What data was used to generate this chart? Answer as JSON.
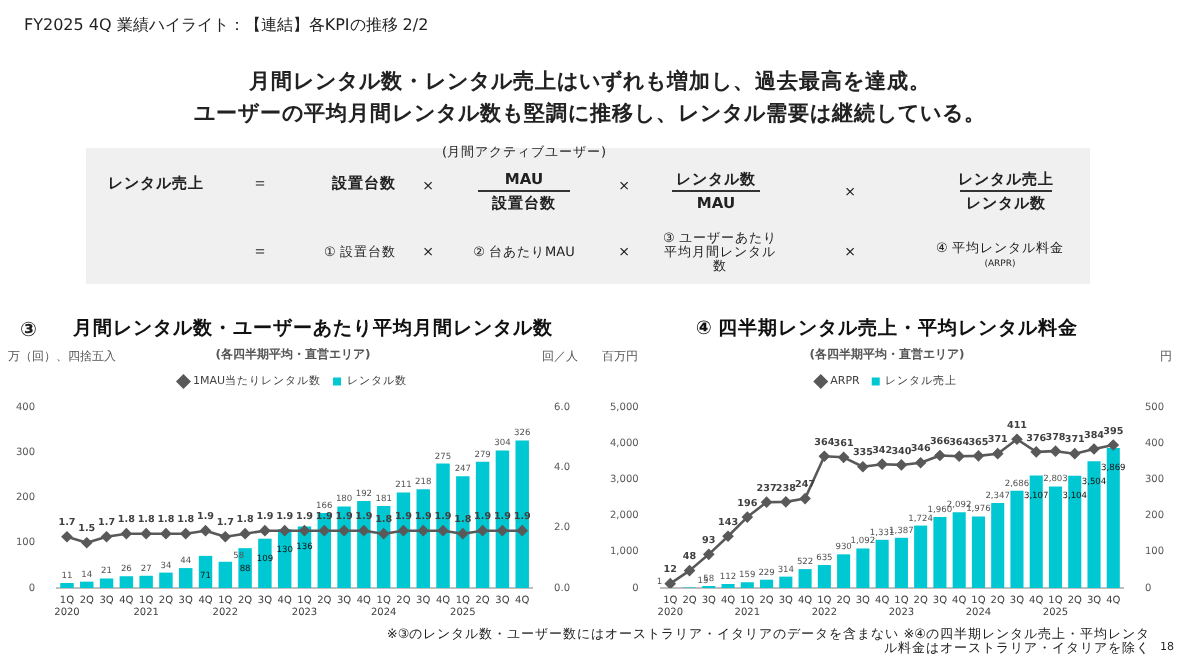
{
  "chart_data": [
    {
      "type": "bar",
      "title": "月間レンタル数・ユーザーあたり平均月間レンタル数",
      "subtitle": "(各四半期平均・直営エリア)",
      "ylabel": "万（回）、四捨五入",
      "y2label": "回／人",
      "categories": [
        "1Q\n2020",
        "2Q",
        "3Q",
        "4Q",
        "1Q\n2021",
        "2Q",
        "3Q",
        "4Q",
        "1Q\n2022",
        "2Q",
        "3Q",
        "4Q",
        "1Q\n2023",
        "2Q",
        "3Q",
        "4Q",
        "1Q\n2024",
        "2Q",
        "3Q",
        "4Q",
        "1Q\n2025",
        "2Q",
        "3Q",
        "4Q"
      ],
      "series": [
        {
          "name": "レンタル数",
          "color": "#00c8d2",
          "values": [
            11,
            14,
            21,
            26,
            27,
            34,
            44,
            71,
            58,
            88,
            109,
            130,
            136,
            166,
            180,
            192,
            181,
            211,
            218,
            275,
            247,
            279,
            304,
            326
          ]
        },
        {
          "name": "1MAU当たりレンタル数",
          "type": "line",
          "axis": "y2",
          "color": "#595959",
          "values": [
            1.7,
            1.5,
            1.7,
            1.8,
            1.8,
            1.8,
            1.8,
            1.9,
            1.7,
            1.8,
            1.9,
            1.9,
            1.9,
            1.9,
            1.9,
            1.9,
            1.8,
            1.9,
            1.9,
            1.9,
            1.8,
            1.9,
            1.9,
            1.9
          ]
        }
      ],
      "ylim": [
        0,
        400
      ],
      "yticks": [
        0,
        100,
        200,
        300,
        400
      ],
      "y2lim": [
        0,
        6
      ],
      "y2ticks": [
        {
          "value": 0,
          "label": "0.0"
        },
        {
          "value": 2,
          "label": "2.0"
        },
        {
          "value": 4,
          "label": "4.0"
        },
        {
          "value": 6,
          "label": "6.0"
        }
      ],
      "legend": "top",
      "marker": "diamond",
      "data_labels": true,
      "annotations": [
        "③",
        "FY2025 4Q 業績ハイライト：【連結】各KPIの推移 2/2",
        "月間レンタル数・レンタル売上はいずれも増加し、過去最高を達成。",
        "ユーザーの平均月間レンタル数も堅調に推移し、レンタル需要は継続している。",
        "レンタル売上",
        "＝",
        "設置台数",
        "×",
        "(月間アクティブユーザー)",
        "MAU",
        "設置台数",
        "×",
        "レンタル数",
        "MAU",
        "×",
        "レンタル売上",
        "レンタル数",
        "＝",
        "① 設置台数",
        "×",
        "② 台あたりMAU",
        "×",
        "③ ユーザーあたり平均月間レンタル数",
        "×",
        "④ 平均レンタル料金",
        "(ARPR)",
        "※③のレンタル数・ユーザー数にはオーストラリア・イタリアのデータを含まない ※④の四半期レンタル売上・平均レンタル料金はオーストラリア・イタリアを除く",
        "18"
      ]
    },
    {
      "type": "bar",
      "title": "④ 四半期レンタル売上・平均レンタル料金",
      "subtitle": "(各四半期平均・直営エリア)",
      "ylabel": "百万円",
      "y2label": "円",
      "categories": [
        "1Q\n2020",
        "2Q",
        "3Q",
        "4Q",
        "1Q\n2021",
        "2Q",
        "3Q",
        "4Q",
        "1Q\n2022",
        "2Q",
        "3Q",
        "4Q",
        "1Q\n2023",
        "2Q",
        "3Q",
        "4Q",
        "1Q\n2024",
        "2Q",
        "3Q",
        "4Q",
        "1Q\n2025",
        "2Q",
        "3Q",
        "4Q"
      ],
      "series": [
        {
          "name": "レンタル売上",
          "color": "#00c8d2",
          "values": [
            1,
            15,
            58,
            112,
            159,
            229,
            314,
            522,
            635,
            930,
            1092,
            1331,
            1387,
            1724,
            1960,
            2092,
            1976,
            2347,
            2686,
            3107,
            2803,
            3104,
            3504,
            3869
          ],
          "value_labels": [
            "1",
            "15",
            "58",
            "112",
            "159",
            "229",
            "314",
            "522",
            "635",
            "930",
            "1,092",
            "1,331",
            "1,387",
            "1,724",
            "1,960",
            "2,092",
            "1,976",
            "2,347",
            "2,686",
            "3,107",
            "2,803",
            "3,104",
            "3,504",
            "3,869"
          ]
        },
        {
          "name": "ARPR",
          "type": "line",
          "axis": "y2",
          "color": "#595959",
          "values": [
            12,
            48,
            93,
            143,
            196,
            237,
            238,
            247,
            364,
            361,
            335,
            342,
            340,
            346,
            366,
            364,
            365,
            371,
            411,
            376,
            378,
            371,
            384,
            395
          ]
        }
      ],
      "ylim": [
        0,
        5000
      ],
      "yticks": [
        0,
        {
          "value": 1000,
          "label": "1,000"
        },
        {
          "value": 2000,
          "label": "2,000"
        },
        {
          "value": 3000,
          "label": "3,000"
        },
        {
          "value": 4000,
          "label": "4,000"
        },
        {
          "value": 5000,
          "label": "5,000"
        }
      ],
      "y2lim": [
        0,
        500
      ],
      "y2ticks": [
        0,
        100,
        200,
        300,
        400,
        500
      ],
      "legend": "top",
      "marker": "diamond",
      "data_labels": true
    }
  ]
}
